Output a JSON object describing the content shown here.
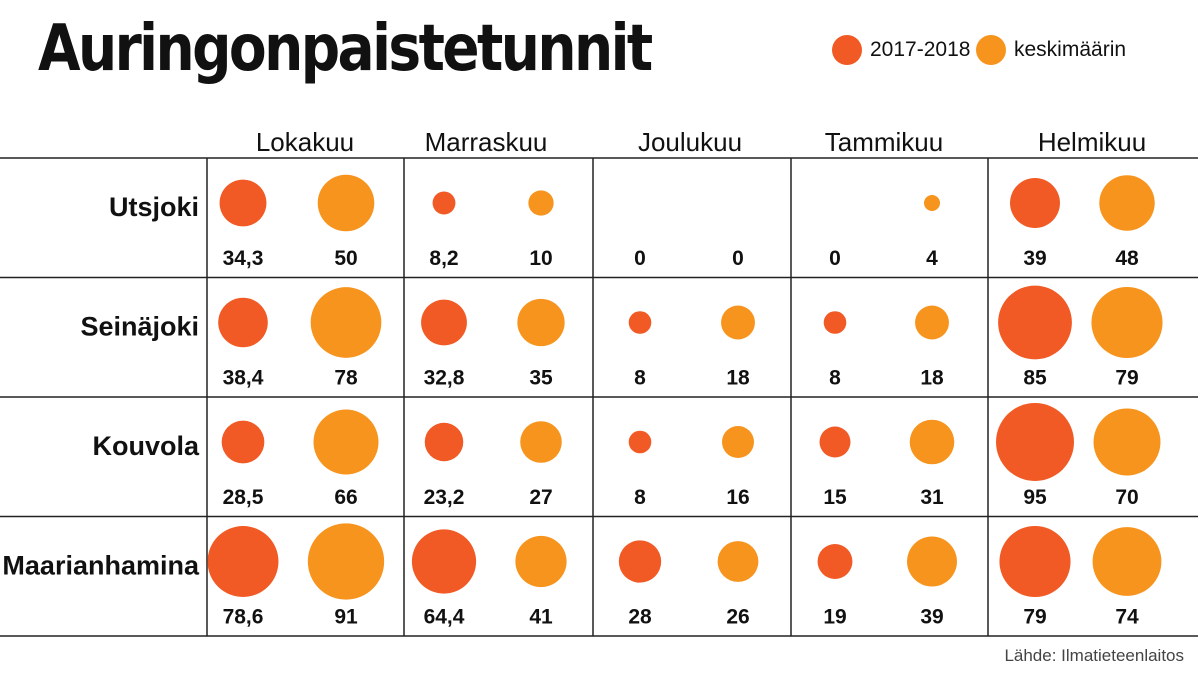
{
  "chart_data": {
    "type": "bubble-table",
    "title": "Auringonpaistetunnit",
    "legend": [
      {
        "label": "2017-2018",
        "color": "#f15a24"
      },
      {
        "label": "keskimäärin",
        "color": "#f7941d"
      }
    ],
    "months": [
      "Lokakuu",
      "Marraskuu",
      "Joulukuu",
      "Tammikuu",
      "Helmikuu"
    ],
    "rows": [
      {
        "city": "Utsjoki",
        "values": [
          {
            "label": "34,3",
            "value": 34.3
          },
          {
            "label": "50",
            "value": 50
          },
          {
            "label": "8,2",
            "value": 8.2
          },
          {
            "label": "10",
            "value": 10
          },
          {
            "label": "0",
            "value": 0
          },
          {
            "label": "0",
            "value": 0
          },
          {
            "label": "0",
            "value": 0
          },
          {
            "label": "4",
            "value": 4
          },
          {
            "label": "39",
            "value": 39
          },
          {
            "label": "48",
            "value": 48
          }
        ]
      },
      {
        "city": "Seinäjoki",
        "values": [
          {
            "label": "38,4",
            "value": 38.4
          },
          {
            "label": "78",
            "value": 78
          },
          {
            "label": "32,8",
            "value": 32.8
          },
          {
            "label": "35",
            "value": 35
          },
          {
            "label": "8",
            "value": 8
          },
          {
            "label": "18",
            "value": 18
          },
          {
            "label": "8",
            "value": 8
          },
          {
            "label": "18",
            "value": 18
          },
          {
            "label": "85",
            "value": 85
          },
          {
            "label": "79",
            "value": 79
          }
        ]
      },
      {
        "city": "Kouvola",
        "values": [
          {
            "label": "28,5",
            "value": 28.5
          },
          {
            "label": "66",
            "value": 66
          },
          {
            "label": "23,2",
            "value": 23.2
          },
          {
            "label": "27",
            "value": 27
          },
          {
            "label": "8",
            "value": 8
          },
          {
            "label": "16",
            "value": 16
          },
          {
            "label": "15",
            "value": 15
          },
          {
            "label": "31",
            "value": 31
          },
          {
            "label": "95",
            "value": 95
          },
          {
            "label": "70",
            "value": 70
          }
        ]
      },
      {
        "city": "Maarianhamina",
        "values": [
          {
            "label": "78,6",
            "value": 78.6
          },
          {
            "label": "91",
            "value": 91
          },
          {
            "label": "64,4",
            "value": 64.4
          },
          {
            "label": "41",
            "value": 41
          },
          {
            "label": "28",
            "value": 28
          },
          {
            "label": "26",
            "value": 26
          },
          {
            "label": "19",
            "value": 19
          },
          {
            "label": "39",
            "value": 39
          },
          {
            "label": "79",
            "value": 79
          },
          {
            "label": "74",
            "value": 74
          }
        ]
      }
    ],
    "source": "Lähde: Ilmatieteenlaitos"
  }
}
